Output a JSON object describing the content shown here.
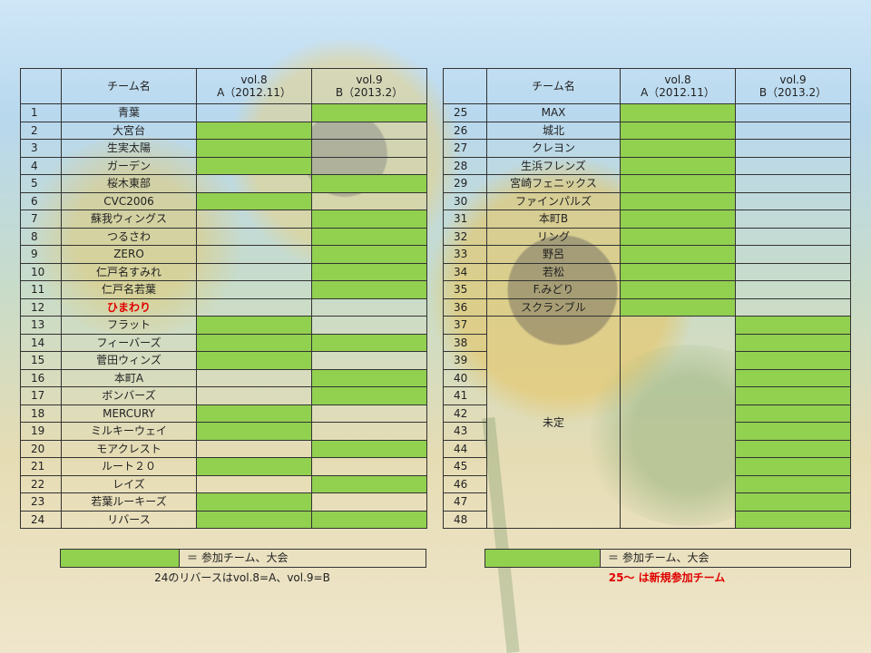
{
  "headers": {
    "team_name": "チーム名",
    "vol8_line1": "vol.8",
    "vol8_line2": "A（2012.11）",
    "vol9_line1": "vol.9",
    "vol9_line2": "B（2013.2）"
  },
  "left_rows": [
    {
      "no": "1",
      "name": "青葉",
      "a": false,
      "b": true
    },
    {
      "no": "2",
      "name": "大宮台",
      "a": true,
      "b": false
    },
    {
      "no": "3",
      "name": "生実太陽",
      "a": true,
      "b": false
    },
    {
      "no": "4",
      "name": "ガーデン",
      "a": true,
      "b": false
    },
    {
      "no": "5",
      "name": "桜木東部",
      "a": false,
      "b": true
    },
    {
      "no": "6",
      "name": "CVC2006",
      "a": true,
      "b": false
    },
    {
      "no": "7",
      "name": "蘇我ウィングス",
      "a": false,
      "b": true
    },
    {
      "no": "8",
      "name": "つるさわ",
      "a": false,
      "b": true
    },
    {
      "no": "9",
      "name": "ZERO",
      "a": false,
      "b": true
    },
    {
      "no": "10",
      "name": "仁戸名すみれ",
      "a": false,
      "b": true
    },
    {
      "no": "11",
      "name": "仁戸名若葉",
      "a": false,
      "b": true
    },
    {
      "no": "12",
      "name": "ひまわり",
      "a": false,
      "b": false,
      "highlight": true
    },
    {
      "no": "13",
      "name": "フラット",
      "a": true,
      "b": false
    },
    {
      "no": "14",
      "name": "フィーバーズ",
      "a": true,
      "b": true
    },
    {
      "no": "15",
      "name": "菅田ウィンズ",
      "a": true,
      "b": false
    },
    {
      "no": "16",
      "name": "本町A",
      "a": false,
      "b": true
    },
    {
      "no": "17",
      "name": "ボンバーズ",
      "a": false,
      "b": true
    },
    {
      "no": "18",
      "name": "MERCURY",
      "a": true,
      "b": false
    },
    {
      "no": "19",
      "name": "ミルキーウェイ",
      "a": true,
      "b": false
    },
    {
      "no": "20",
      "name": "モアクレスト",
      "a": false,
      "b": true
    },
    {
      "no": "21",
      "name": "ルート２０",
      "a": true,
      "b": false
    },
    {
      "no": "22",
      "name": "レイズ",
      "a": false,
      "b": true
    },
    {
      "no": "23",
      "name": "若葉ルーキーズ",
      "a": true,
      "b": false
    },
    {
      "no": "24",
      "name": "リバース",
      "a": true,
      "b": true
    }
  ],
  "right_rows": [
    {
      "no": "25",
      "name": "MAX",
      "a": true,
      "b": false
    },
    {
      "no": "26",
      "name": "城北",
      "a": true,
      "b": false
    },
    {
      "no": "27",
      "name": "クレヨン",
      "a": true,
      "b": false
    },
    {
      "no": "28",
      "name": "生浜フレンズ",
      "a": true,
      "b": false
    },
    {
      "no": "29",
      "name": "宮崎フェニックス",
      "a": true,
      "b": false
    },
    {
      "no": "30",
      "name": "ファインパルズ",
      "a": true,
      "b": false
    },
    {
      "no": "31",
      "name": "本町B",
      "a": true,
      "b": false
    },
    {
      "no": "32",
      "name": "リング",
      "a": true,
      "b": false
    },
    {
      "no": "33",
      "name": "野呂",
      "a": true,
      "b": false
    },
    {
      "no": "34",
      "name": "若松",
      "a": true,
      "b": false
    },
    {
      "no": "35",
      "name": "F.みどり",
      "a": true,
      "b": false
    },
    {
      "no": "36",
      "name": "スクランブル",
      "a": true,
      "b": false
    },
    {
      "no": "37",
      "a": false,
      "b": true
    },
    {
      "no": "38",
      "a": false,
      "b": true
    },
    {
      "no": "39",
      "a": false,
      "b": true
    },
    {
      "no": "40",
      "a": false,
      "b": true
    },
    {
      "no": "41",
      "a": false,
      "b": true
    },
    {
      "no": "42",
      "a": false,
      "b": true
    },
    {
      "no": "43",
      "a": false,
      "b": true
    },
    {
      "no": "44",
      "a": false,
      "b": true
    },
    {
      "no": "45",
      "a": false,
      "b": true
    },
    {
      "no": "46",
      "a": false,
      "b": true
    },
    {
      "no": "47",
      "a": false,
      "b": true
    },
    {
      "no": "48",
      "a": false,
      "b": true
    }
  ],
  "undecided_label": "未定",
  "legend_text": "＝ 参加チーム、大会",
  "note_left": "24のリバースはvol.8=A、vol.9=B",
  "note_right": "25～ は新規参加チーム",
  "colors": {
    "participating": "#92d050",
    "highlight_text": "#e00000"
  }
}
